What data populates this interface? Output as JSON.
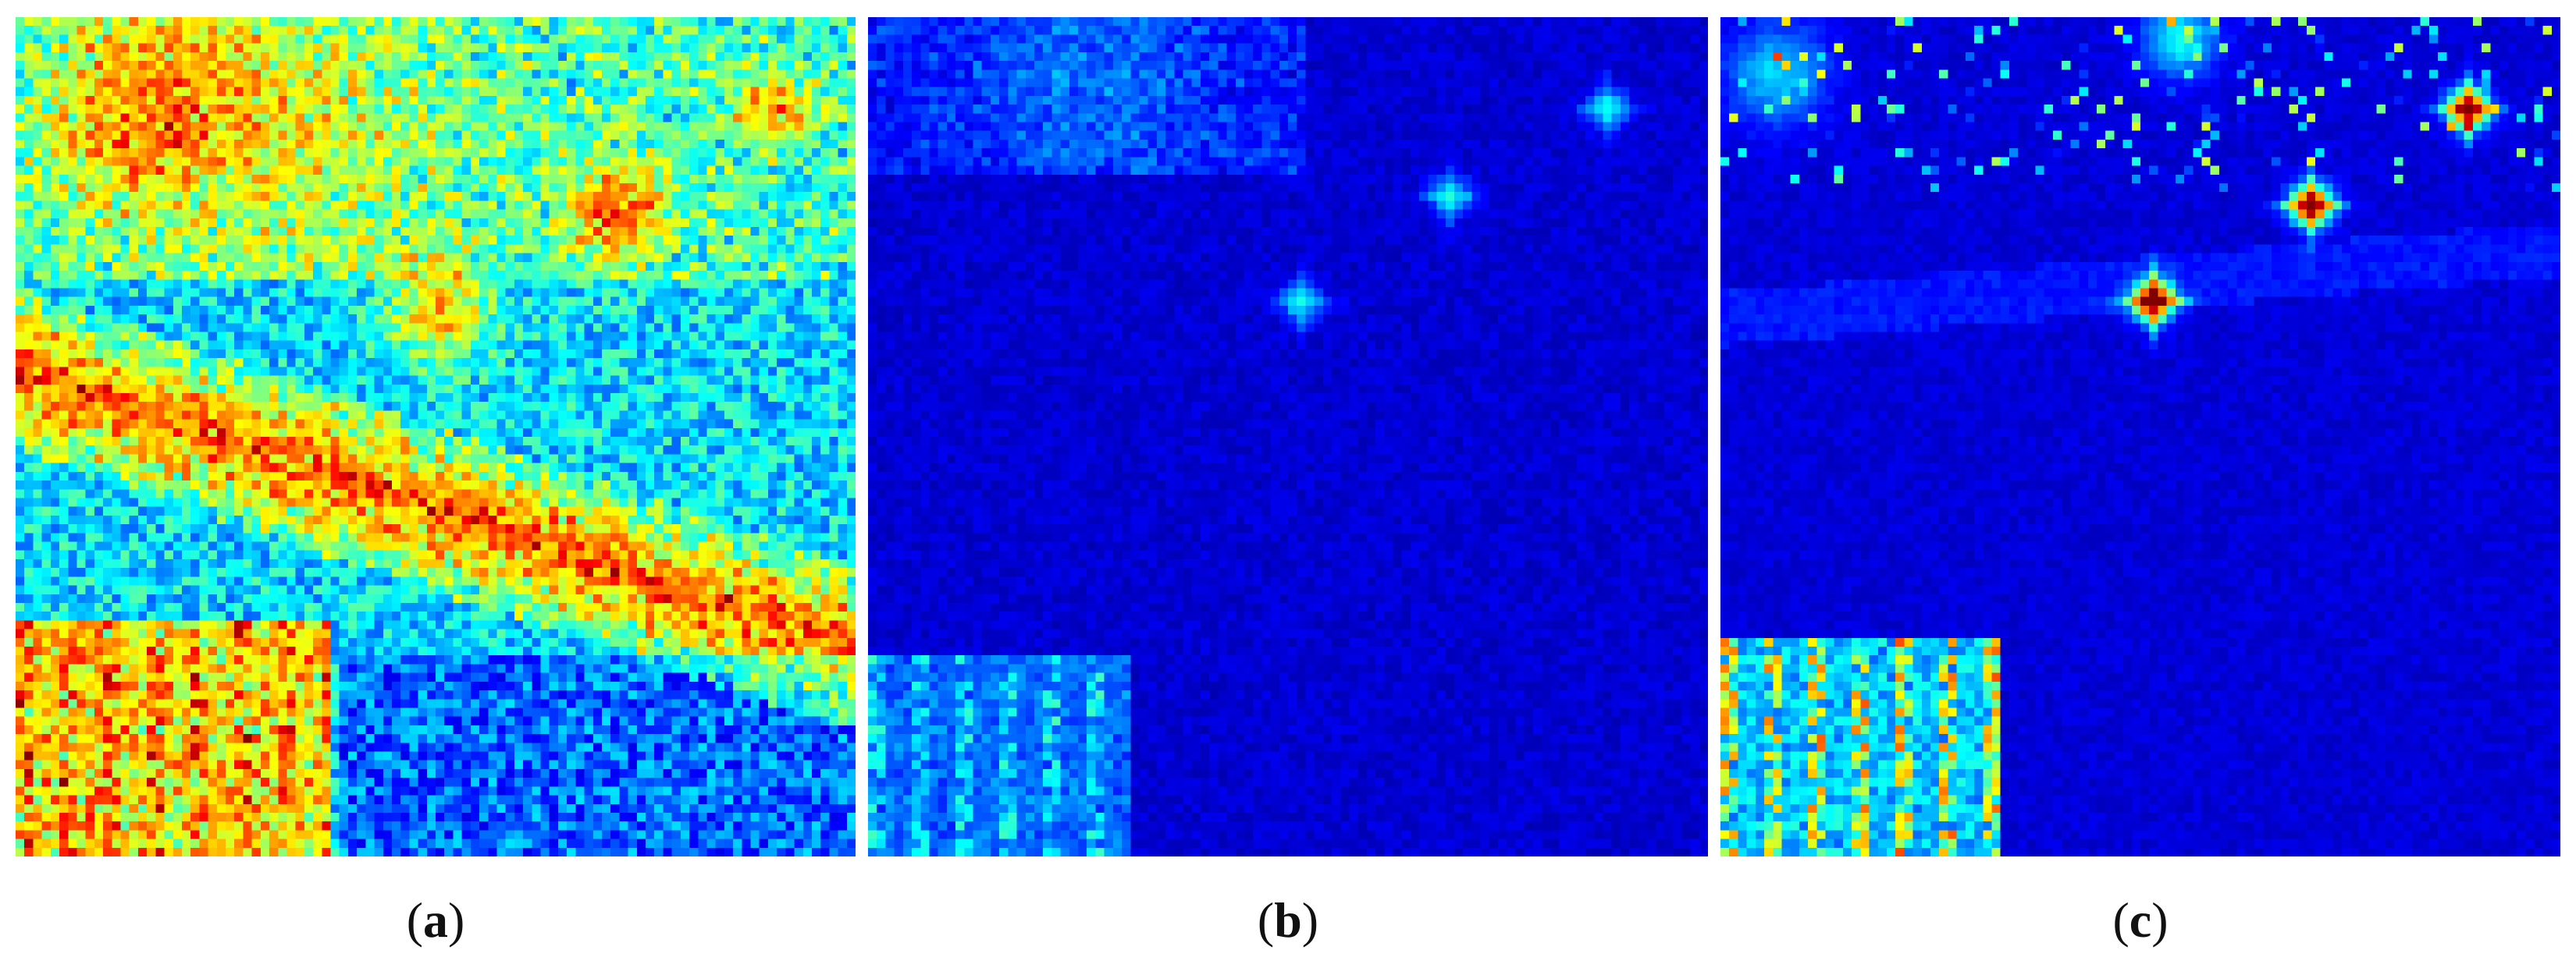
{
  "figure": {
    "colormap": "jet",
    "panels": [
      {
        "id": "a",
        "caption_open": "(",
        "caption_letter": "a",
        "caption_close": ")"
      },
      {
        "id": "b",
        "caption_open": "(",
        "caption_letter": "b",
        "caption_close": ")"
      },
      {
        "id": "c",
        "caption_open": "(",
        "caption_letter": "c",
        "caption_close": ")"
      }
    ]
  }
}
